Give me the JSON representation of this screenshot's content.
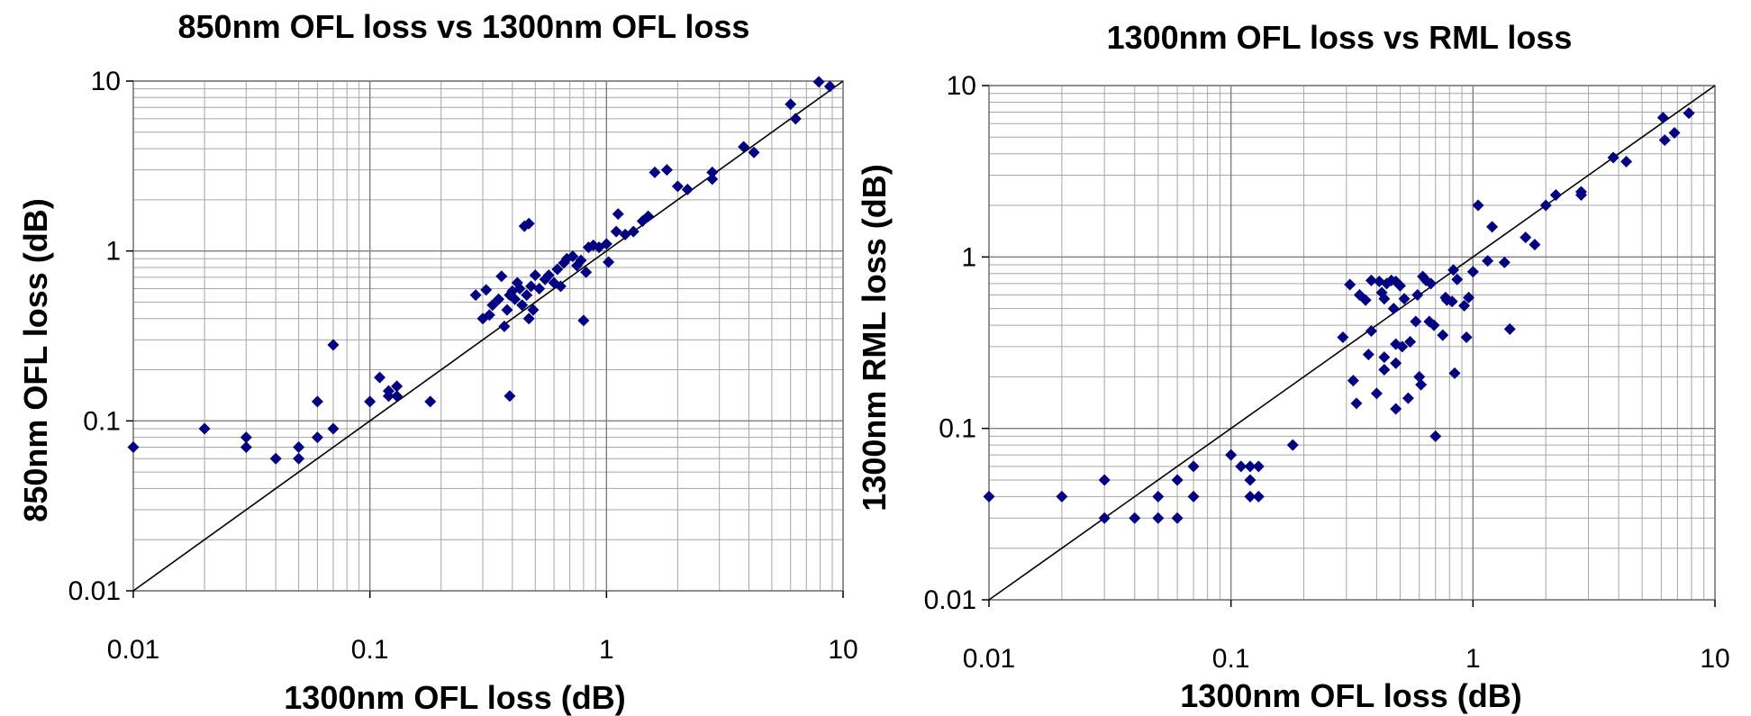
{
  "chart_data": [
    {
      "type": "scatter",
      "title": "850nm OFL loss vs 1300nm OFL loss",
      "xlabel": "1300nm OFL loss (dB)",
      "ylabel": "850nm OFL loss (dB)",
      "xscale": "log",
      "yscale": "log",
      "xlim": [
        0.01,
        10
      ],
      "ylim": [
        0.01,
        10
      ],
      "xticks": [
        "0.01",
        "0.1",
        "1",
        "10"
      ],
      "yticks": [
        "0.01",
        "0.1",
        "1",
        "10"
      ],
      "grid": true,
      "legend": "none",
      "marker": "diamond",
      "marker_color": "#000080",
      "reference_line": "y = x",
      "points": [
        [
          0.01,
          0.07
        ],
        [
          0.02,
          0.09
        ],
        [
          0.03,
          0.08
        ],
        [
          0.03,
          0.07
        ],
        [
          0.04,
          0.06
        ],
        [
          0.05,
          0.07
        ],
        [
          0.05,
          0.06
        ],
        [
          0.06,
          0.13
        ],
        [
          0.06,
          0.08
        ],
        [
          0.07,
          0.09
        ],
        [
          0.07,
          0.28
        ],
        [
          0.1,
          0.13
        ],
        [
          0.11,
          0.18
        ],
        [
          0.12,
          0.14
        ],
        [
          0.12,
          0.15
        ],
        [
          0.13,
          0.16
        ],
        [
          0.13,
          0.14
        ],
        [
          0.18,
          0.13
        ],
        [
          0.28,
          0.55
        ],
        [
          0.3,
          0.4
        ],
        [
          0.31,
          0.59
        ],
        [
          0.32,
          0.42
        ],
        [
          0.33,
          0.48
        ],
        [
          0.35,
          0.52
        ],
        [
          0.36,
          0.71
        ],
        [
          0.37,
          0.36
        ],
        [
          0.38,
          0.45
        ],
        [
          0.39,
          0.14
        ],
        [
          0.39,
          0.55
        ],
        [
          0.4,
          0.58
        ],
        [
          0.41,
          0.52
        ],
        [
          0.42,
          0.65
        ],
        [
          0.43,
          0.6
        ],
        [
          0.44,
          0.48
        ],
        [
          0.45,
          1.4
        ],
        [
          0.46,
          0.55
        ],
        [
          0.47,
          1.45
        ],
        [
          0.47,
          0.4
        ],
        [
          0.48,
          0.62
        ],
        [
          0.49,
          0.45
        ],
        [
          0.5,
          0.72
        ],
        [
          0.52,
          0.6
        ],
        [
          0.55,
          0.68
        ],
        [
          0.57,
          0.72
        ],
        [
          0.6,
          0.65
        ],
        [
          0.62,
          0.78
        ],
        [
          0.64,
          0.62
        ],
        [
          0.66,
          0.85
        ],
        [
          0.68,
          0.9
        ],
        [
          0.72,
          0.93
        ],
        [
          0.75,
          0.82
        ],
        [
          0.78,
          0.88
        ],
        [
          0.8,
          0.39
        ],
        [
          0.82,
          0.75
        ],
        [
          0.84,
          1.05
        ],
        [
          0.88,
          1.08
        ],
        [
          0.93,
          1.05
        ],
        [
          1.0,
          1.1
        ],
        [
          1.02,
          0.86
        ],
        [
          1.1,
          1.3
        ],
        [
          1.12,
          1.65
        ],
        [
          1.2,
          1.25
        ],
        [
          1.3,
          1.3
        ],
        [
          1.42,
          1.5
        ],
        [
          1.5,
          1.6
        ],
        [
          1.6,
          2.9
        ],
        [
          1.8,
          3.0
        ],
        [
          2.0,
          2.4
        ],
        [
          2.2,
          2.3
        ],
        [
          2.8,
          2.9
        ],
        [
          2.8,
          2.65
        ],
        [
          3.8,
          4.1
        ],
        [
          4.2,
          3.8
        ],
        [
          6.0,
          7.3
        ],
        [
          6.3,
          6.0
        ],
        [
          7.9,
          9.9
        ],
        [
          8.8,
          9.3
        ]
      ]
    },
    {
      "type": "scatter",
      "title": "1300nm OFL loss vs RML loss",
      "xlabel": "1300nm OFL loss (dB)",
      "ylabel": "1300nm RML loss (dB)",
      "xscale": "log",
      "yscale": "log",
      "xlim": [
        0.01,
        10
      ],
      "ylim": [
        0.01,
        10
      ],
      "xticks": [
        "0.01",
        "0.1",
        "1",
        "10"
      ],
      "yticks": [
        "0.01",
        "0.1",
        "1",
        "10"
      ],
      "grid": true,
      "legend": "none",
      "marker": "diamond",
      "marker_color": "#000080",
      "reference_line": "y = x",
      "points": [
        [
          0.01,
          0.04
        ],
        [
          0.02,
          0.04
        ],
        [
          0.03,
          0.05
        ],
        [
          0.03,
          0.03
        ],
        [
          0.04,
          0.03
        ],
        [
          0.05,
          0.04
        ],
        [
          0.05,
          0.03
        ],
        [
          0.06,
          0.05
        ],
        [
          0.06,
          0.03
        ],
        [
          0.07,
          0.06
        ],
        [
          0.07,
          0.04
        ],
        [
          0.1,
          0.07
        ],
        [
          0.11,
          0.06
        ],
        [
          0.12,
          0.06
        ],
        [
          0.12,
          0.05
        ],
        [
          0.12,
          0.04
        ],
        [
          0.13,
          0.06
        ],
        [
          0.13,
          0.04
        ],
        [
          0.18,
          0.08
        ],
        [
          0.29,
          0.34
        ],
        [
          0.31,
          0.69
        ],
        [
          0.32,
          0.19
        ],
        [
          0.33,
          0.14
        ],
        [
          0.34,
          0.6
        ],
        [
          0.36,
          0.56
        ],
        [
          0.37,
          0.27
        ],
        [
          0.38,
          0.73
        ],
        [
          0.38,
          0.37
        ],
        [
          0.4,
          0.16
        ],
        [
          0.41,
          0.72
        ],
        [
          0.42,
          0.62
        ],
        [
          0.43,
          0.57
        ],
        [
          0.43,
          0.26
        ],
        [
          0.43,
          0.22
        ],
        [
          0.44,
          0.7
        ],
        [
          0.46,
          0.73
        ],
        [
          0.47,
          0.5
        ],
        [
          0.48,
          0.72
        ],
        [
          0.48,
          0.31
        ],
        [
          0.48,
          0.24
        ],
        [
          0.48,
          0.13
        ],
        [
          0.5,
          0.68
        ],
        [
          0.51,
          0.3
        ],
        [
          0.52,
          0.57
        ],
        [
          0.54,
          0.15
        ],
        [
          0.55,
          0.32
        ],
        [
          0.58,
          0.42
        ],
        [
          0.59,
          0.6
        ],
        [
          0.6,
          0.2
        ],
        [
          0.61,
          0.18
        ],
        [
          0.62,
          0.77
        ],
        [
          0.64,
          0.73
        ],
        [
          0.66,
          0.42
        ],
        [
          0.67,
          0.7
        ],
        [
          0.69,
          0.4
        ],
        [
          0.7,
          0.09
        ],
        [
          0.75,
          0.35
        ],
        [
          0.77,
          0.58
        ],
        [
          0.78,
          0.56
        ],
        [
          0.82,
          0.55
        ],
        [
          0.83,
          0.84
        ],
        [
          0.84,
          0.21
        ],
        [
          0.86,
          0.74
        ],
        [
          0.92,
          0.52
        ],
        [
          0.94,
          0.34
        ],
        [
          0.96,
          0.58
        ],
        [
          1.0,
          0.82
        ],
        [
          1.05,
          2.0
        ],
        [
          1.15,
          0.95
        ],
        [
          1.2,
          1.5
        ],
        [
          1.35,
          0.93
        ],
        [
          1.42,
          0.38
        ],
        [
          1.65,
          1.3
        ],
        [
          1.8,
          1.18
        ],
        [
          2.0,
          2.0
        ],
        [
          2.2,
          2.3
        ],
        [
          2.8,
          2.4
        ],
        [
          2.8,
          2.3
        ],
        [
          3.8,
          3.8
        ],
        [
          4.3,
          3.6
        ],
        [
          6.1,
          6.5
        ],
        [
          6.2,
          4.8
        ],
        [
          6.8,
          5.3
        ],
        [
          7.8,
          6.9
        ]
      ]
    }
  ]
}
